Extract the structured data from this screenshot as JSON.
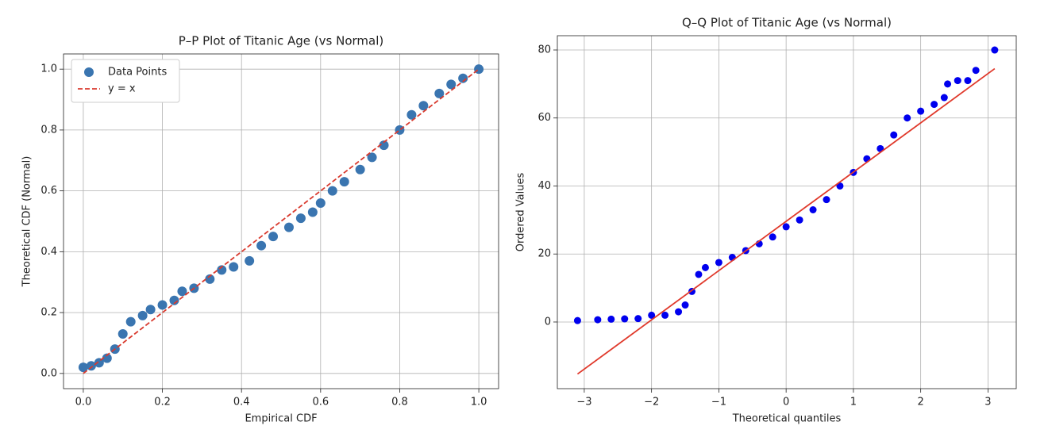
{
  "chart_data": [
    {
      "type": "scatter",
      "title": "P–P Plot of Titanic Age (vs Normal)",
      "xlabel": "Empirical CDF",
      "ylabel": "Theoretical CDF (Normal)",
      "xlim": [
        -0.05,
        1.05
      ],
      "ylim": [
        -0.05,
        1.05
      ],
      "xticks": [
        {
          "value": 0,
          "label": "0.0"
        },
        {
          "value": 0.2,
          "label": "0.2"
        },
        {
          "value": 0.4,
          "label": "0.4"
        },
        {
          "value": 0.6,
          "label": "0.6"
        },
        {
          "value": 0.8,
          "label": "0.8"
        },
        {
          "value": 1,
          "label": "1.0"
        }
      ],
      "yticks": [
        {
          "value": 0,
          "label": "0.0"
        },
        {
          "value": 0.2,
          "label": "0.2"
        },
        {
          "value": 0.4,
          "label": "0.4"
        },
        {
          "value": 0.6,
          "label": "0.6"
        },
        {
          "value": 0.8,
          "label": "0.8"
        },
        {
          "value": 1,
          "label": "1.0"
        }
      ],
      "grid": true,
      "legend": "upper left",
      "series": [
        {
          "name": "Data Points",
          "type": "scatter",
          "color": "#3a75b0",
          "x": [
            0,
            0.02,
            0.04,
            0.06,
            0.08,
            0.1,
            0.12,
            0.15,
            0.17,
            0.2,
            0.23,
            0.25,
            0.28,
            0.32,
            0.35,
            0.38,
            0.42,
            0.45,
            0.48,
            0.52,
            0.55,
            0.58,
            0.6,
            0.63,
            0.66,
            0.7,
            0.73,
            0.76,
            0.8,
            0.83,
            0.86,
            0.9,
            0.93,
            0.96,
            1.0
          ],
          "values": [
            0.02,
            0.025,
            0.035,
            0.05,
            0.08,
            0.13,
            0.17,
            0.19,
            0.21,
            0.225,
            0.24,
            0.27,
            0.28,
            0.31,
            0.34,
            0.35,
            0.37,
            0.42,
            0.45,
            0.48,
            0.51,
            0.53,
            0.56,
            0.6,
            0.63,
            0.67,
            0.71,
            0.75,
            0.8,
            0.85,
            0.88,
            0.92,
            0.95,
            0.97,
            1.0
          ]
        },
        {
          "name": "y = x",
          "type": "line",
          "dashed": true,
          "color": "#d93a2e",
          "x": [
            0,
            1
          ],
          "values": [
            0,
            1
          ]
        }
      ]
    },
    {
      "type": "scatter",
      "title": "Q–Q Plot of Titanic Age (vs Normal)",
      "xlabel": "Theoretical quantiles",
      "ylabel": "Ordered Values",
      "xlim": [
        -3.4,
        3.42
      ],
      "ylim": [
        -19.6,
        84.2
      ],
      "xticks": [
        {
          "value": -3,
          "label": "−3"
        },
        {
          "value": -2,
          "label": "−2"
        },
        {
          "value": -1,
          "label": "−1"
        },
        0,
        1,
        2,
        3
      ],
      "yticks": [
        0,
        20,
        40,
        60,
        80
      ],
      "grid": true,
      "series": [
        {
          "type": "scatter",
          "color": "#0000ee",
          "x": [
            -3.1,
            -2.8,
            -2.6,
            -2.4,
            -2.2,
            -2.0,
            -1.8,
            -1.6,
            -1.5,
            -1.4,
            -1.3,
            -1.2,
            -1.0,
            -0.8,
            -0.6,
            -0.4,
            -0.2,
            0,
            0.2,
            0.4,
            0.6,
            0.8,
            1.0,
            1.2,
            1.4,
            1.6,
            1.8,
            2.0,
            2.2,
            2.35,
            2.4,
            2.55,
            2.7,
            2.82,
            3.1
          ],
          "values": [
            0.42,
            0.67,
            0.83,
            0.92,
            1,
            2,
            2,
            3,
            5,
            9,
            14,
            16,
            17.5,
            19,
            21,
            23,
            25,
            28,
            30,
            33,
            36,
            40,
            44,
            48,
            51,
            55,
            60,
            62,
            64,
            66,
            70,
            71,
            71,
            74,
            80
          ]
        },
        {
          "type": "line",
          "color": "#e0392b",
          "x": [
            -3.1,
            3.1
          ],
          "values": [
            -15.3,
            74.5
          ]
        }
      ]
    }
  ]
}
